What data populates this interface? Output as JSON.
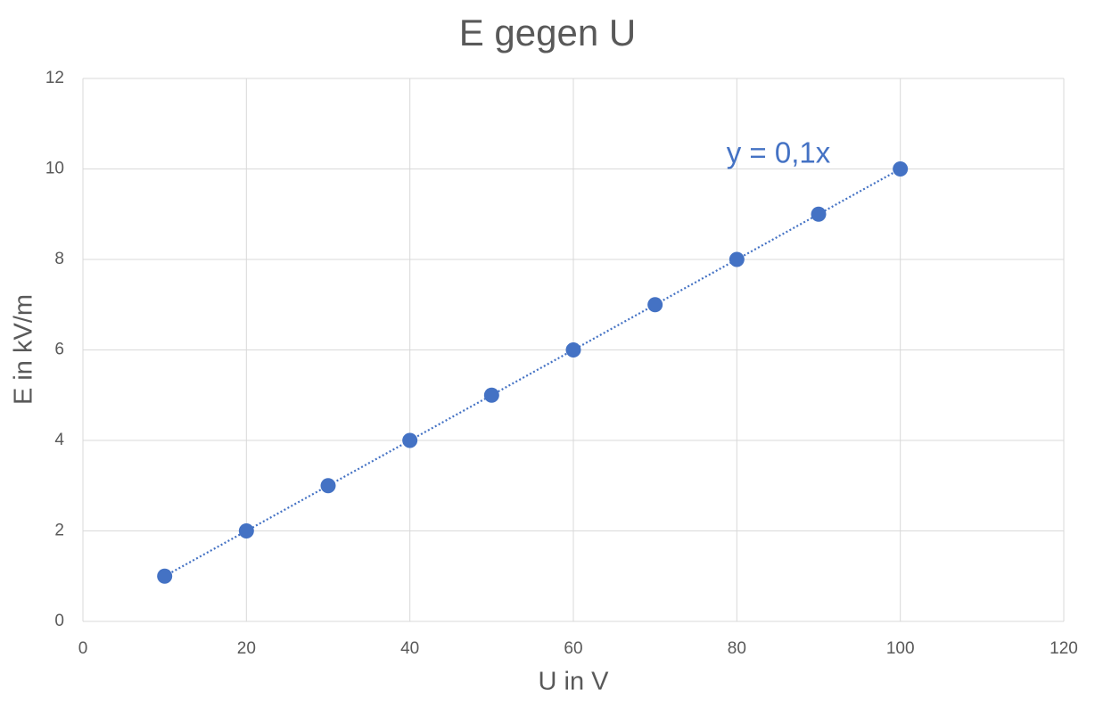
{
  "chart_data": {
    "type": "scatter",
    "title": "E gegen U",
    "x_label": "U in V",
    "y_label": "E in kV/m",
    "x": [
      10,
      20,
      30,
      40,
      50,
      60,
      70,
      80,
      90,
      100
    ],
    "values": [
      1,
      2,
      3,
      4,
      5,
      6,
      7,
      8,
      9,
      10
    ],
    "color": "#4472c4",
    "xlim": [
      0,
      120
    ],
    "xticks": [
      0,
      20,
      40,
      60,
      80,
      100,
      120
    ],
    "ylim": [
      0,
      12
    ],
    "yticks": [
      0,
      2,
      4,
      6,
      8,
      10,
      12
    ],
    "grid": true,
    "trendline": {
      "slope": 0.1,
      "label": "y = 0,1x"
    }
  }
}
